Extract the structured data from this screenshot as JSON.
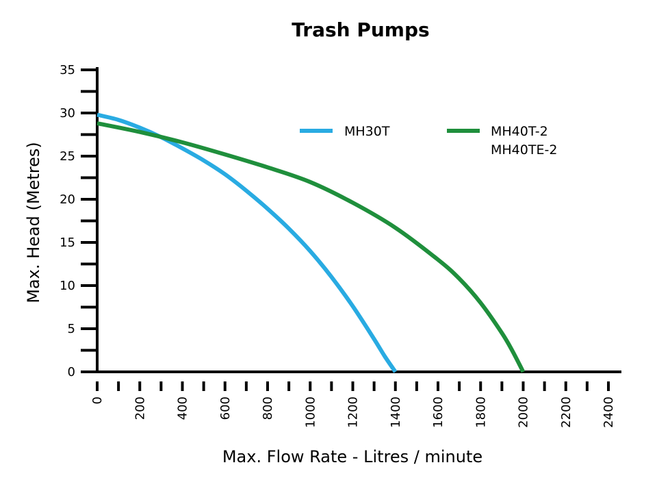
{
  "chart_data": {
    "type": "line",
    "title": "Trash Pumps",
    "xlabel": "Max. Flow Rate - Litres / minute",
    "ylabel": "Max. Head (Metres)",
    "xlim": [
      0,
      2400
    ],
    "ylim": [
      0,
      35
    ],
    "x_ticks": [
      "0",
      "200",
      "400",
      "600",
      "800",
      "1000",
      "1200",
      "1400",
      "1600",
      "1800",
      "2000",
      "2200",
      "2400"
    ],
    "y_ticks": [
      "0",
      "5",
      "10",
      "15",
      "20",
      "25",
      "30",
      "35"
    ],
    "grid": false,
    "legend_position": "top-right",
    "series": [
      {
        "name": "MH30T",
        "color": "#29ABE2",
        "x": [
          0,
          100,
          200,
          300,
          400,
          500,
          600,
          700,
          800,
          900,
          1000,
          1100,
          1200,
          1300,
          1350,
          1400
        ],
        "y": [
          29.8,
          29.2,
          28.3,
          27.2,
          25.9,
          24.5,
          22.9,
          21.0,
          18.9,
          16.6,
          14.0,
          11.0,
          7.6,
          3.8,
          1.8,
          0
        ]
      },
      {
        "name": "MH40T-2\nMH40TE-2",
        "name_lines": [
          "MH40T-2",
          "MH40TE-2"
        ],
        "color": "#1F8F3C",
        "x": [
          0,
          200,
          400,
          600,
          800,
          1000,
          1200,
          1400,
          1600,
          1700,
          1800,
          1900,
          1950,
          2000
        ],
        "y": [
          28.8,
          27.8,
          26.6,
          25.2,
          23.7,
          22.0,
          19.6,
          16.7,
          13.0,
          10.8,
          8.0,
          4.5,
          2.4,
          0
        ]
      }
    ]
  }
}
